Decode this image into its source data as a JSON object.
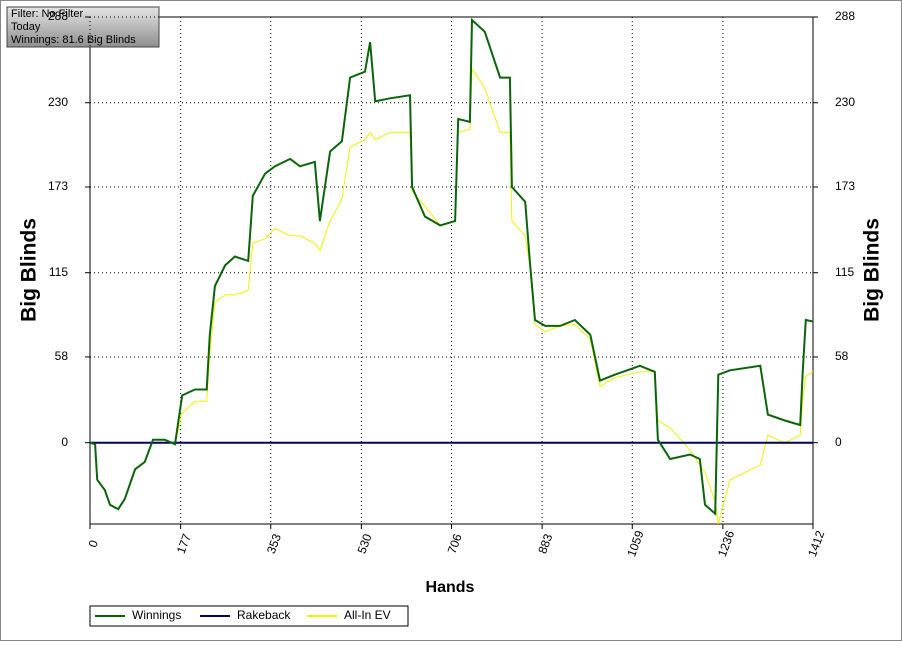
{
  "chart_data": {
    "type": "line",
    "annotations": [
      "Filter: No Filter",
      "Today",
      "Winnings: 81.6 Big Blinds"
    ],
    "xlabel": "Hands",
    "ylabel": "Big Blinds",
    "y2label": "Big Blinds",
    "x": [
      0,
      10,
      14,
      29,
      39,
      55,
      68,
      88,
      107,
      123,
      146,
      166,
      180,
      205,
      228,
      234,
      244,
      264,
      283,
      309,
      318,
      342,
      361,
      391,
      410,
      439,
      449,
      469,
      492,
      508,
      537,
      547,
      557,
      586,
      625,
      629,
      654,
      684,
      713,
      719,
      742,
      746,
      771,
      801,
      820,
      824,
      850,
      859,
      869,
      889,
      918,
      947,
      977,
      996,
      1025,
      1074,
      1103,
      1109,
      1133,
      1172,
      1191,
      1201,
      1221,
      1227,
      1250,
      1309,
      1324,
      1357,
      1387,
      1392,
      1398,
      1412
    ],
    "series": [
      {
        "name": "Winnings",
        "color": "#0b640b",
        "values": [
          0,
          -1,
          -25,
          -32,
          -42,
          -45,
          -38,
          -18,
          -13,
          2,
          2,
          -1,
          32,
          36,
          36,
          73,
          106,
          120,
          126,
          123,
          167,
          182,
          187,
          192,
          187,
          190,
          150,
          197,
          204,
          247,
          251,
          271,
          231,
          233,
          235,
          173,
          153,
          147,
          150,
          219,
          217,
          286,
          278,
          247,
          247,
          173,
          163,
          123,
          83,
          79,
          79,
          83,
          73,
          42,
          46,
          52,
          48,
          2,
          -11,
          -8,
          -11,
          -42,
          -48,
          46,
          49,
          52,
          19,
          15,
          12,
          49,
          83,
          82
        ]
      },
      {
        "name": "Rakeback",
        "color": "#000060",
        "values": [
          0,
          0,
          0,
          0,
          0,
          0,
          0,
          0,
          0,
          0,
          0,
          0,
          0,
          0,
          0,
          0,
          0,
          0,
          0,
          0,
          0,
          0,
          0,
          0,
          0,
          0,
          0,
          0,
          0,
          0,
          0,
          0,
          0,
          0,
          0,
          0,
          0,
          0,
          0,
          0,
          0,
          0,
          0,
          0,
          0,
          0,
          0,
          0,
          0,
          0,
          0,
          0,
          0,
          0,
          0,
          0,
          0,
          0,
          0,
          0,
          0,
          0,
          0,
          0,
          0,
          0,
          0,
          0,
          0,
          0,
          0,
          0
        ]
      },
      {
        "name": "All-In EV",
        "color": "#f2f200",
        "values": [
          0,
          -1,
          -25,
          -32,
          -42,
          -45,
          -38,
          -18,
          -13,
          2,
          2,
          -1,
          20,
          28,
          28,
          60,
          95,
          100,
          100,
          103,
          135,
          138,
          145,
          140,
          140,
          135,
          130,
          150,
          165,
          200,
          205,
          210,
          205,
          210,
          210,
          170,
          160,
          147,
          150,
          210,
          212,
          253,
          240,
          210,
          210,
          150,
          140,
          120,
          80,
          75,
          79,
          80,
          70,
          38,
          44,
          48,
          48,
          15,
          10,
          -5,
          -15,
          -20,
          -40,
          -55,
          -25,
          -15,
          5,
          0,
          5,
          30,
          45,
          48
        ]
      }
    ],
    "xlim": [
      0,
      1412
    ],
    "xticks": [
      0,
      177,
      353,
      530,
      706,
      883,
      1059,
      1236,
      1412
    ],
    "ylim": [
      -55,
      288
    ],
    "yticks": [
      0,
      58,
      115,
      173,
      230,
      288
    ],
    "grid": true
  }
}
